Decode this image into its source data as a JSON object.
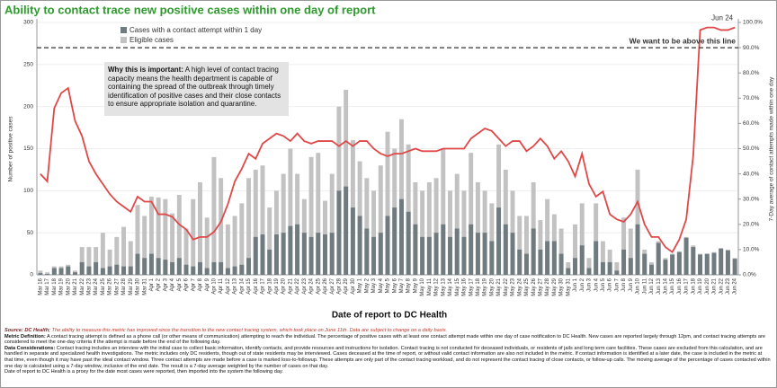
{
  "chart_data": {
    "type": "bar",
    "title": "Ability to contact trace new positive cases within one day of report",
    "x_label": "Date of report to DC Health",
    "y_label": "Number of positive cases",
    "y2_label": "7-Day average of contact attempts made within one day",
    "categories": [
      "Mar 16",
      "Mar 17",
      "Mar 18",
      "Mar 19",
      "Mar 20",
      "Mar 21",
      "Mar 22",
      "Mar 23",
      "Mar 24",
      "Mar 25",
      "Mar 26",
      "Mar 27",
      "Mar 28",
      "Mar 29",
      "Mar 30",
      "Mar 31",
      "Apr 1",
      "Apr 2",
      "Apr 3",
      "Apr 4",
      "Apr 5",
      "Apr 6",
      "Apr 7",
      "Apr 8",
      "Apr 9",
      "Apr 10",
      "Apr 11",
      "Apr 12",
      "Apr 13",
      "Apr 14",
      "Apr 15",
      "Apr 16",
      "Apr 17",
      "Apr 18",
      "Apr 19",
      "Apr 20",
      "Apr 21",
      "Apr 22",
      "Apr 23",
      "Apr 24",
      "Apr 25",
      "Apr 26",
      "Apr 27",
      "Apr 28",
      "Apr 29",
      "Apr 30",
      "May 1",
      "May 2",
      "May 3",
      "May 4",
      "May 5",
      "May 6",
      "May 7",
      "May 8",
      "May 9",
      "May 10",
      "May 11",
      "May 12",
      "May 13",
      "May 14",
      "May 15",
      "May 16",
      "May 17",
      "May 18",
      "May 19",
      "May 20",
      "May 21",
      "May 22",
      "May 23",
      "May 24",
      "May 25",
      "May 26",
      "May 27",
      "May 28",
      "May 29",
      "May 30",
      "May 31",
      "Jun 1",
      "Jun 2",
      "Jun 3",
      "Jun 4",
      "Jun 5",
      "Jun 6",
      "Jun 7",
      "Jun 8",
      "Jun 9",
      "Jun 10",
      "Jun 11",
      "Jun 12",
      "Jun 13",
      "Jun 14",
      "Jun 15",
      "Jun 16",
      "Jun 17",
      "Jun 18",
      "Jun 19",
      "Jun 20",
      "Jun 21",
      "Jun 22",
      "Jun 23",
      "Jun 24"
    ],
    "series": [
      {
        "name": "Cases with a contact attempt within 1 day",
        "color": "#6f7b7f",
        "values": [
          2,
          1,
          8,
          8,
          10,
          3,
          15,
          10,
          15,
          8,
          10,
          12,
          10,
          10,
          25,
          20,
          25,
          20,
          18,
          15,
          20,
          12,
          10,
          15,
          8,
          15,
          15,
          8,
          10,
          12,
          20,
          45,
          48,
          30,
          48,
          50,
          58,
          60,
          50,
          45,
          50,
          48,
          50,
          100,
          105,
          80,
          70,
          55,
          45,
          50,
          70,
          80,
          90,
          75,
          60,
          45,
          45,
          50,
          60,
          45,
          55,
          45,
          60,
          50,
          50,
          40,
          80,
          60,
          50,
          30,
          25,
          55,
          30,
          40,
          40,
          25,
          8,
          20,
          35,
          8,
          40,
          15,
          15,
          5,
          30,
          20,
          60,
          25,
          12,
          38,
          18,
          24,
          27,
          44,
          33,
          24,
          25,
          26,
          31,
          29,
          19
        ]
      },
      {
        "name": "Eligible cases",
        "color": "#c2c2c2",
        "values": [
          5,
          3,
          10,
          10,
          12,
          5,
          33,
          33,
          33,
          50,
          30,
          45,
          57,
          40,
          83,
          70,
          93,
          92,
          90,
          73,
          95,
          55,
          90,
          110,
          68,
          140,
          115,
          60,
          70,
          85,
          115,
          125,
          130,
          80,
          100,
          120,
          150,
          120,
          90,
          140,
          145,
          88,
          120,
          200,
          220,
          160,
          135,
          115,
          100,
          130,
          170,
          150,
          185,
          155,
          110,
          100,
          110,
          115,
          150,
          100,
          120,
          100,
          145,
          110,
          100,
          85,
          155,
          125,
          100,
          70,
          70,
          110,
          65,
          90,
          72,
          55,
          15,
          60,
          85,
          20,
          85,
          40,
          30,
          15,
          68,
          55,
          125,
          30,
          15,
          40,
          20,
          25,
          28,
          45,
          35,
          25,
          25,
          27,
          32,
          30,
          20
        ]
      }
    ],
    "line_series": {
      "color": "#e04848",
      "axis": "y2",
      "values": [
        40,
        37,
        66,
        72,
        74,
        61,
        55,
        45,
        40,
        36,
        32,
        29,
        27,
        25,
        31,
        29,
        29,
        24,
        24,
        23,
        20,
        18,
        14,
        15,
        15,
        17,
        21,
        28,
        37,
        42,
        48,
        46,
        52,
        54,
        56,
        55,
        53,
        56,
        53,
        52,
        53,
        53,
        53,
        51,
        53,
        51,
        53,
        53,
        50,
        48,
        47,
        48,
        48,
        49,
        50,
        49,
        49,
        49,
        50,
        50,
        50,
        50,
        54,
        56,
        58,
        57,
        54,
        51,
        53,
        53,
        49,
        51,
        54,
        51,
        46,
        49,
        45,
        39,
        48,
        36,
        31,
        33,
        24,
        22,
        21,
        24,
        29,
        20,
        15,
        15,
        11,
        9,
        14,
        22,
        47,
        97,
        98,
        98,
        97,
        97,
        98
      ]
    },
    "ylim": [
      0,
      300
    ],
    "yticks": [
      0,
      50,
      100,
      150,
      200,
      250,
      300
    ],
    "y2lim": [
      0,
      100
    ],
    "y2ticks": [
      {
        "value": 0,
        "label": "0.0%"
      },
      {
        "value": 10,
        "label": "10.0%"
      },
      {
        "value": 20,
        "label": "20.0%"
      },
      {
        "value": 30,
        "label": "30.0%"
      },
      {
        "value": 40,
        "label": "40.0%"
      },
      {
        "value": 50,
        "label": "50.0%"
      },
      {
        "value": 60,
        "label": "60.0%"
      },
      {
        "value": 70,
        "label": "70.0%"
      },
      {
        "value": 80,
        "label": "80.0%"
      },
      {
        "value": 90,
        "label": "90.0%"
      },
      {
        "value": 100,
        "label": "100.0%"
      }
    ],
    "reference_line": {
      "value": 90,
      "label": "We want to be above this line"
    },
    "end_annotation": "Jun 24",
    "callout": {
      "heading": "Why this is important:",
      "text": "A high level of contact tracing capacity means the health department is capable of containing the spread of the outbreak through timely identification of positive cases and their close contacts to ensure appropriate isolation and quarantine."
    },
    "notes": [
      {
        "label": "Source: DC Health;",
        "text": "The ability to measure this metric has improved since the transition to the new contact tracing system, which took place on June 11th. Data are subject to change on a daily basis."
      },
      {
        "label": "Metric Definition:",
        "text": "A contact tracing attempt is defined as a phone call (or other means of communication) attempting to reach the individual. The percentage of positive cases with at least one contact attempt made within one day of case notification to DC Health.  New cases are reported largely through 12pm, and contact tracing attempts are considered to meet the one-day criteria if the attempt is made before the end of the following day."
      },
      {
        "label": "Data Considerations:",
        "text": "Contact tracing includes an interview with the initial case to collect basic information, identify contacts, and provide resources and instructions for isolation. Contact tracing is not conducted for deceased individuals, or residents of jails and long term care facilities. These cases are excluded from this calculation, and are handled in separate and specialized health investigations. The metric includes only DC residents, though out of state residents may be interviewed. Cases deceased at the time of report, or without valid contact information are also not included in the metric. If contact information is identified at a later date, the case is included in the metric at that time, even though it may have past the ideal contact window. Three contact attempts are made before a case is marked loss-to-followup. These attempts are only part of the contact tracing workload, and do not represent the contact tracing of close contacts, or follow-up calls. The moving average of the percentage of cases contacted within one day is calculated using a 7-day window, inclusive of the end date. The result is a 7-day average weighted by the number of cases on that day."
      },
      {
        "label": null,
        "text": "Date of report to DC Health is a proxy for the date most cases were reported, then imported into the system the following day."
      }
    ]
  }
}
